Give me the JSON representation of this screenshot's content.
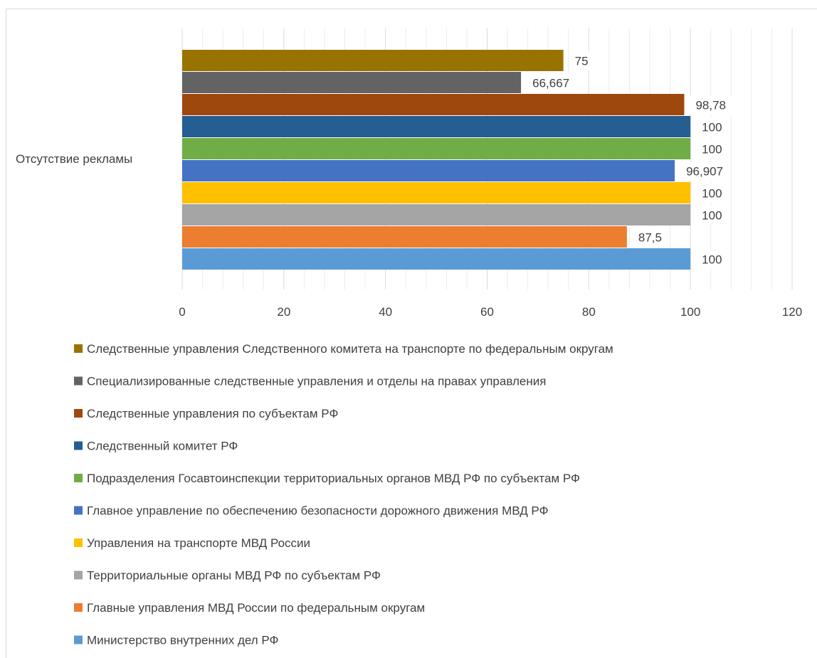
{
  "chart_data": {
    "type": "bar",
    "orientation": "horizontal",
    "categories": [
      "Отсутствие рекламы"
    ],
    "series": [
      {
        "name": "Следственные управления Следственного комитета на транспорте по федеральным округам",
        "value": 75,
        "label": "75",
        "color": "#997300"
      },
      {
        "name": "Специализированные следственные управления и отделы на правах управления",
        "value": 66.667,
        "label": "66,667",
        "color": "#636363"
      },
      {
        "name": "Следственные управления по субъектам РФ",
        "value": 98.78,
        "label": "98,78",
        "color": "#9e480e"
      },
      {
        "name": "Следственный комитет РФ",
        "value": 100,
        "label": "100",
        "color": "#255e91"
      },
      {
        "name": "Подразделения Госавтоинспекции территориальных органов МВД РФ по субъектам РФ",
        "value": 100,
        "label": "100",
        "color": "#70ad47"
      },
      {
        "name": "Главное управление по обеспечению безопасности дорожного движения МВД РФ",
        "value": 96.907,
        "label": "96,907",
        "color": "#4472c4"
      },
      {
        "name": "Управления на транспорте МВД России",
        "value": 100,
        "label": "100",
        "color": "#ffc000"
      },
      {
        "name": "Территориальные органы МВД РФ по субъектам РФ",
        "value": 100,
        "label": "100",
        "color": "#a5a5a5"
      },
      {
        "name": "Главные управления МВД России по федеральным округам",
        "value": 87.5,
        "label": "87,5",
        "color": "#ed7d31"
      },
      {
        "name": "Министерство внутренних дел РФ",
        "value": 100,
        "label": "100",
        "color": "#5b9bd5"
      }
    ],
    "xlim": [
      0,
      120
    ],
    "x_ticks": [
      {
        "value": 0,
        "label": "0"
      },
      {
        "value": 20,
        "label": "20"
      },
      {
        "value": 40,
        "label": "40"
      },
      {
        "value": 60,
        "label": "60"
      },
      {
        "value": 80,
        "label": "80"
      },
      {
        "value": 100,
        "label": "100"
      },
      {
        "value": 120,
        "label": "120"
      }
    ],
    "grid": true,
    "legend_position": "bottom"
  }
}
